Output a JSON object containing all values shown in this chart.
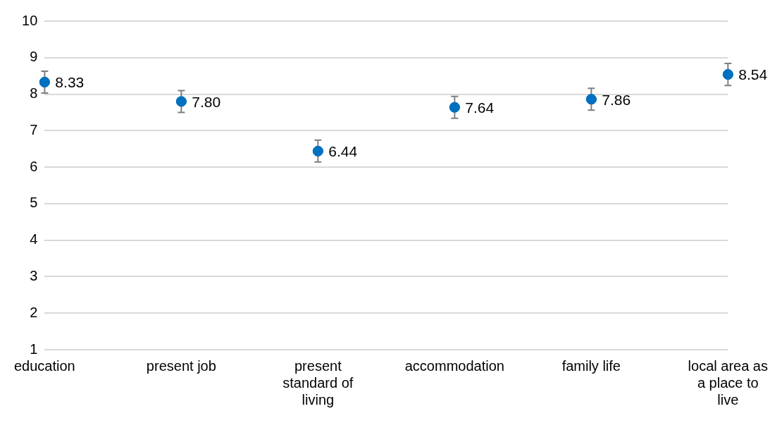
{
  "chart_data": {
    "type": "scatter",
    "categories": [
      "education",
      "present job",
      "present standard of living",
      "accommodation",
      "family life",
      "local area as a place to live"
    ],
    "series": [
      {
        "color": "#0070c0",
        "values": [
          8.33,
          7.8,
          6.44,
          7.64,
          7.86,
          8.54
        ],
        "errors": [
          0.3,
          0.3,
          0.3,
          0.3,
          0.3,
          0.3
        ],
        "value_labels": [
          "8.33",
          "7.80",
          "6.44",
          "7.64",
          "7.86",
          "8.54"
        ]
      }
    ],
    "ylim": [
      1,
      10
    ],
    "yticks": [
      1,
      2,
      3,
      4,
      5,
      6,
      7,
      8,
      9,
      10
    ],
    "grid": "y",
    "marker": "circle",
    "legend": false
  }
}
